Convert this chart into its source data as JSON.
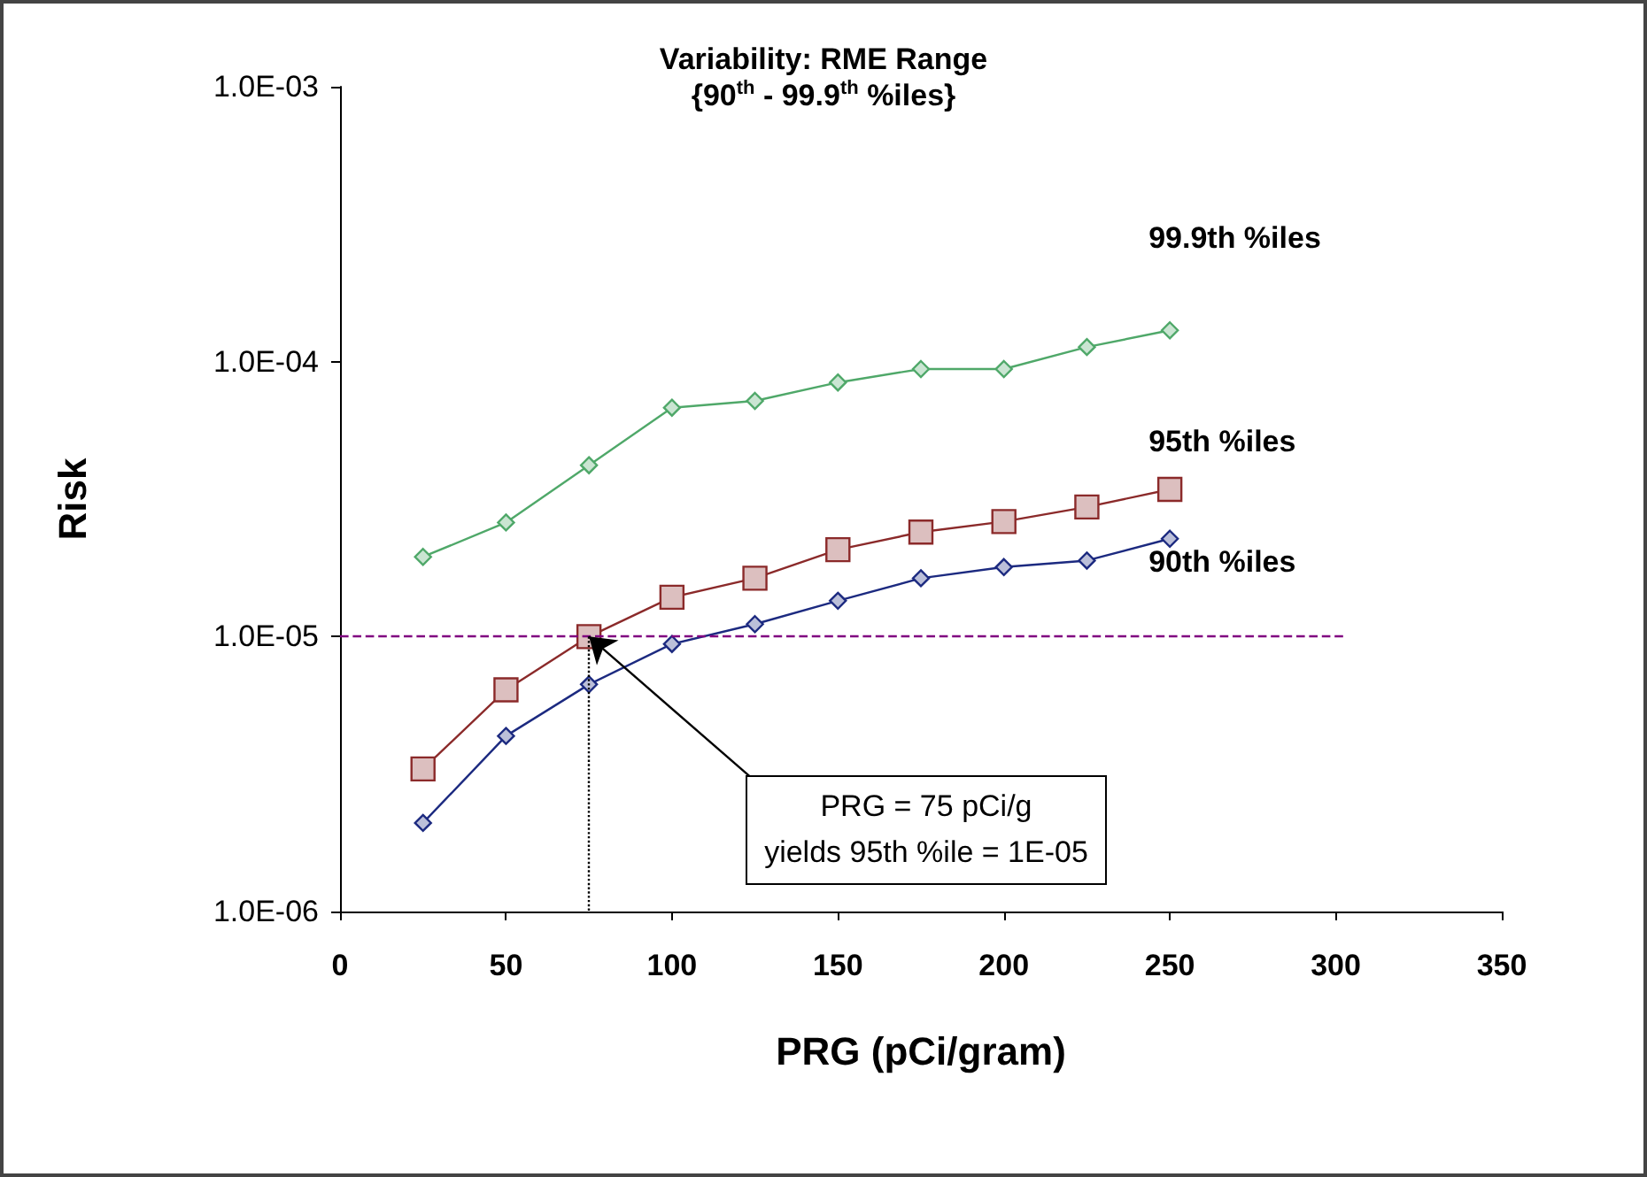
{
  "chart_data": {
    "type": "line",
    "title": "Variability: RME Range",
    "subtitle": "{90$^{th}$ - 99.9$^{th}$ %iles}",
    "xlabel": "PRG (pCi/gram)",
    "ylabel": "Risk",
    "x": [
      25,
      50,
      75,
      100,
      125,
      150,
      175,
      200,
      225,
      250
    ],
    "series": [
      {
        "name": "99.9th %iles",
        "color": "#4fa869",
        "marker": "diamond",
        "values": [
          1.95e-05,
          2.6e-05,
          4.2e-05,
          6.8e-05,
          7.2e-05,
          8.4e-05,
          9.4e-05,
          9.4e-05,
          0.000113,
          0.00013
        ]
      },
      {
        "name": "95th %iles",
        "color": "#8b2a2a",
        "marker": "square",
        "values": [
          3.3e-06,
          6.4e-06,
          1e-05,
          1.39e-05,
          1.63e-05,
          2.07e-05,
          2.4e-05,
          2.62e-05,
          2.96e-05,
          3.43e-05
        ]
      },
      {
        "name": "90th %iles",
        "color": "#1c2a80",
        "marker": "diamond",
        "values": [
          2.1e-06,
          4.35e-06,
          6.7e-06,
          9.4e-06,
          1.11e-05,
          1.35e-05,
          1.63e-05,
          1.79e-05,
          1.89e-05,
          2.27e-05
        ]
      }
    ],
    "log": "y",
    "xlim": [
      0,
      350
    ],
    "xticks": [
      0,
      50,
      100,
      150,
      200,
      250,
      300,
      350
    ],
    "ylim": [
      1e-06,
      0.001
    ],
    "yticks": [
      {
        "value": 1e-06,
        "label": "1.0E-06"
      },
      {
        "value": 1e-05,
        "label": "1.0E-05"
      },
      {
        "value": 0.0001,
        "label": "1.0E-04"
      },
      {
        "value": 0.001,
        "label": "1.0E-03"
      }
    ],
    "grid": false,
    "legend": false,
    "line_style": "solid",
    "ref_lines": [
      {
        "axis": "y",
        "value": 1e-05,
        "color": "#800080",
        "line_style": "dashed"
      },
      {
        "axis": "x",
        "value": 75,
        "color": "#000000",
        "line_style": "dotted"
      }
    ],
    "annotations": [
      "PRG = 75 pCi/g\nyields 95th %ile = 1E-05"
    ]
  }
}
